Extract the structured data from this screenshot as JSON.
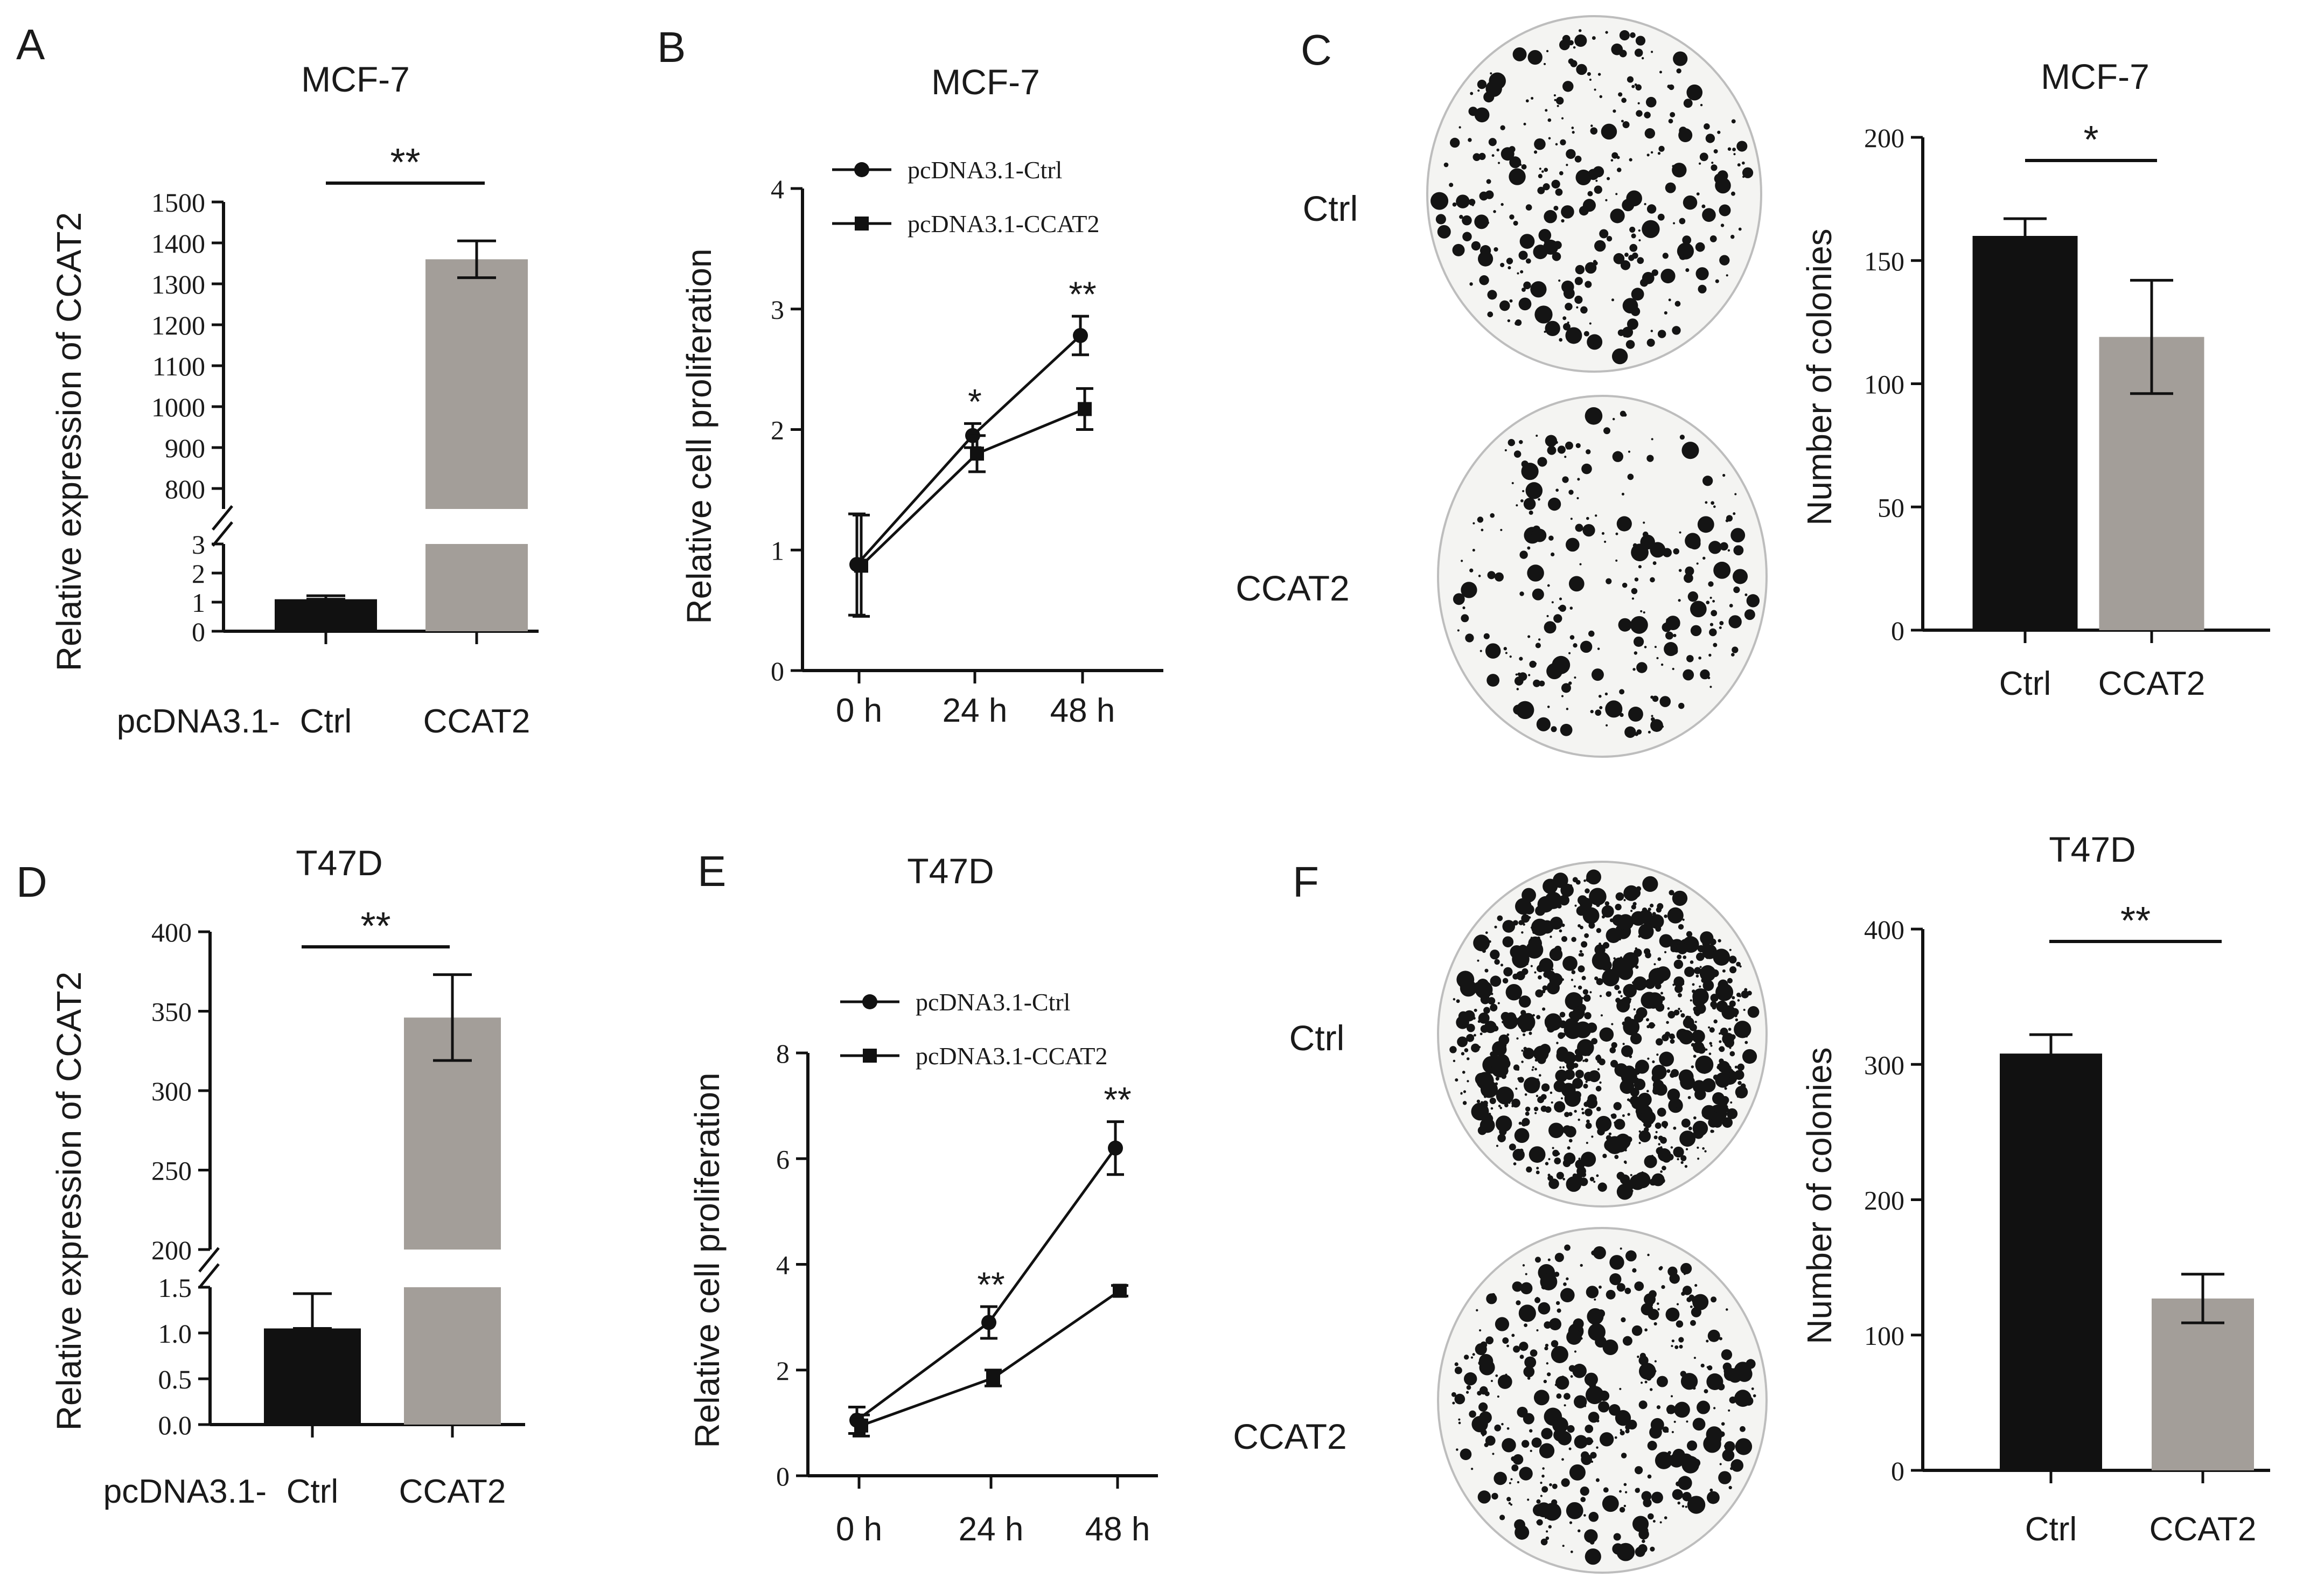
{
  "figure": {
    "colors": {
      "ctrl_bar": "#111111",
      "ccat2_bar": "#a39e99",
      "axis": "#111111",
      "dish_bg": "#f4f4f2",
      "dish_edge": "#bdbdbd",
      "colony": "#141414"
    }
  },
  "chart_data": [
    {
      "id": "A",
      "panel_letter": "A",
      "type": "bar",
      "title": "MCF-7",
      "ylabel": "Relative expression of CCAT2",
      "xlabel": "",
      "group_prefix": "pcDNA3.1-",
      "categories": [
        "Ctrl",
        "CCAT2"
      ],
      "values": [
        1.1,
        1360
      ],
      "errors": [
        0.12,
        45
      ],
      "axis_break": true,
      "lower_ylim": [
        0,
        3
      ],
      "lower_ticks": [
        "0",
        "1",
        "2",
        "3"
      ],
      "upper_ylim": [
        750,
        1500
      ],
      "upper_ticks": [
        "800",
        "900",
        "1000",
        "1100",
        "1200",
        "1300",
        "1400",
        "1500"
      ],
      "significance": "**"
    },
    {
      "id": "B",
      "panel_letter": "B",
      "type": "line",
      "title": "MCF-7",
      "ylabel": "Relative cell proliferation",
      "xlabel": "",
      "x": [
        "0 h",
        "24 h",
        "48 h"
      ],
      "ylim": [
        0,
        4
      ],
      "yticks": [
        "0",
        "1",
        "2",
        "3",
        "4"
      ],
      "series": [
        {
          "name": "pcDNA3.1-Ctrl",
          "marker": "circle",
          "values": [
            0.88,
            1.95,
            2.78
          ],
          "errors": [
            0.42,
            0.1,
            0.16
          ]
        },
        {
          "name": "pcDNA3.1-CCAT2",
          "marker": "square",
          "values": [
            0.87,
            1.8,
            2.17
          ],
          "errors": [
            0.42,
            0.15,
            0.17
          ]
        }
      ],
      "annotations": [
        "",
        "*",
        "**"
      ],
      "legend": "top-left"
    },
    {
      "id": "C",
      "panel_letter": "C",
      "type": "bar",
      "title": "MCF-7",
      "ylabel": "Number of colonies",
      "xlabel": "",
      "categories": [
        "Ctrl",
        "CCAT2"
      ],
      "values": [
        160,
        119
      ],
      "errors": [
        7,
        23
      ],
      "ylim": [
        0,
        200
      ],
      "yticks": [
        "0",
        "50",
        "100",
        "150",
        "200"
      ],
      "significance": "*",
      "image_labels": [
        "Ctrl",
        "CCAT2"
      ]
    },
    {
      "id": "D",
      "panel_letter": "D",
      "type": "bar",
      "title": "T47D",
      "ylabel": "Relative expression of CCAT2",
      "xlabel": "",
      "group_prefix": "pcDNA3.1-",
      "categories": [
        "Ctrl",
        "CCAT2"
      ],
      "values": [
        1.05,
        346
      ],
      "errors": [
        0.38,
        27
      ],
      "axis_break": true,
      "lower_ylim": [
        0,
        1.5
      ],
      "lower_ticks": [
        "0.0",
        "0.5",
        "1.0",
        "1.5"
      ],
      "upper_ylim": [
        200,
        400
      ],
      "upper_ticks": [
        "200",
        "250",
        "300",
        "350",
        "400"
      ],
      "significance": "**"
    },
    {
      "id": "E",
      "panel_letter": "E",
      "type": "line",
      "title": "T47D",
      "ylabel": "Relative cell proliferation",
      "xlabel": "",
      "x": [
        "0 h",
        "24 h",
        "48 h"
      ],
      "ylim": [
        0,
        8
      ],
      "yticks": [
        "0",
        "2",
        "4",
        "6",
        "8"
      ],
      "series": [
        {
          "name": "pcDNA3.1-Ctrl",
          "marker": "circle",
          "values": [
            1.05,
            2.9,
            6.2
          ],
          "errors": [
            0.25,
            0.3,
            0.5
          ]
        },
        {
          "name": "pcDNA3.1-CCAT2",
          "marker": "square",
          "values": [
            0.95,
            1.85,
            3.5
          ],
          "errors": [
            0.2,
            0.15,
            0.1
          ]
        }
      ],
      "annotations": [
        "",
        "**",
        "**"
      ],
      "legend": "top-left"
    },
    {
      "id": "F",
      "panel_letter": "F",
      "type": "bar",
      "title": "T47D",
      "ylabel": "Number of colonies",
      "xlabel": "",
      "categories": [
        "Ctrl",
        "CCAT2"
      ],
      "values": [
        308,
        127
      ],
      "errors": [
        14,
        18
      ],
      "ylim": [
        0,
        400
      ],
      "yticks": [
        "0",
        "100",
        "200",
        "300",
        "400"
      ],
      "significance": "**",
      "image_labels": [
        "Ctrl",
        "CCAT2"
      ]
    }
  ]
}
